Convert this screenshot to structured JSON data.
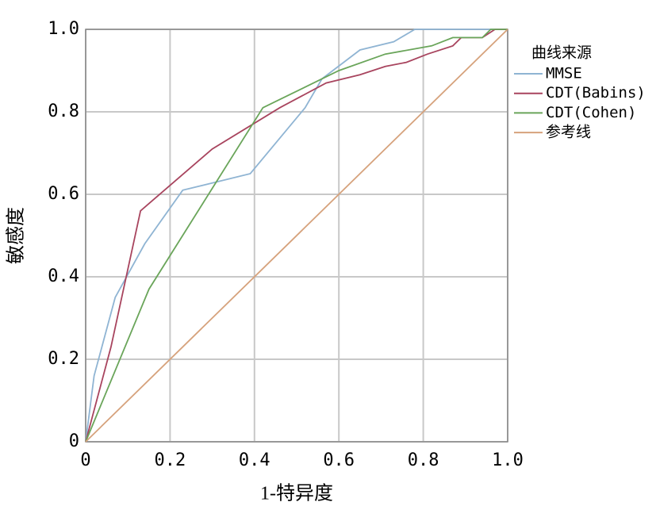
{
  "chart_data": {
    "type": "line",
    "x_label": "1-特异度",
    "y_label": "敏感度",
    "legend_title": "曲线来源",
    "legend": "right",
    "grid": true,
    "xlim": [
      0,
      1
    ],
    "ylim": [
      0,
      1
    ],
    "xticks": [
      0,
      0.2,
      0.4,
      0.6,
      0.8,
      {
        "value": 1,
        "label": "1.0"
      }
    ],
    "yticks": [
      0,
      0.2,
      0.4,
      0.6,
      0.8,
      {
        "value": 1,
        "label": "1.0"
      }
    ],
    "series": [
      {
        "name": "MMSE",
        "color": "#8fb4d3",
        "x": [
          0,
          0.02,
          0.07,
          0.14,
          0.23,
          0.39,
          0.52,
          0.56,
          0.65,
          0.73,
          0.78,
          1
        ],
        "values": [
          0,
          0.16,
          0.35,
          0.48,
          0.61,
          0.65,
          0.81,
          0.88,
          0.95,
          0.97,
          1,
          1
        ]
      },
      {
        "name": "CDT(Babins)",
        "color": "#a8445e",
        "x": [
          0,
          0.06,
          0.13,
          0.3,
          0.46,
          0.57,
          0.65,
          0.71,
          0.76,
          0.81,
          0.87,
          0.89,
          0.94,
          0.97,
          1
        ],
        "values": [
          0,
          0.23,
          0.56,
          0.71,
          0.81,
          0.87,
          0.89,
          0.91,
          0.92,
          0.94,
          0.96,
          0.98,
          0.98,
          1,
          1
        ]
      },
      {
        "name": "CDT(Cohen)",
        "color": "#6aa55a",
        "x": [
          0,
          0.15,
          0.42,
          0.52,
          0.6,
          0.71,
          0.82,
          0.87,
          0.94,
          0.96,
          1
        ],
        "values": [
          0,
          0.37,
          0.81,
          0.86,
          0.9,
          0.94,
          0.96,
          0.98,
          0.98,
          1,
          1
        ]
      },
      {
        "name": "参考线",
        "color": "#d6a27c",
        "x": [
          0,
          1
        ],
        "values": [
          0,
          1
        ]
      }
    ]
  }
}
